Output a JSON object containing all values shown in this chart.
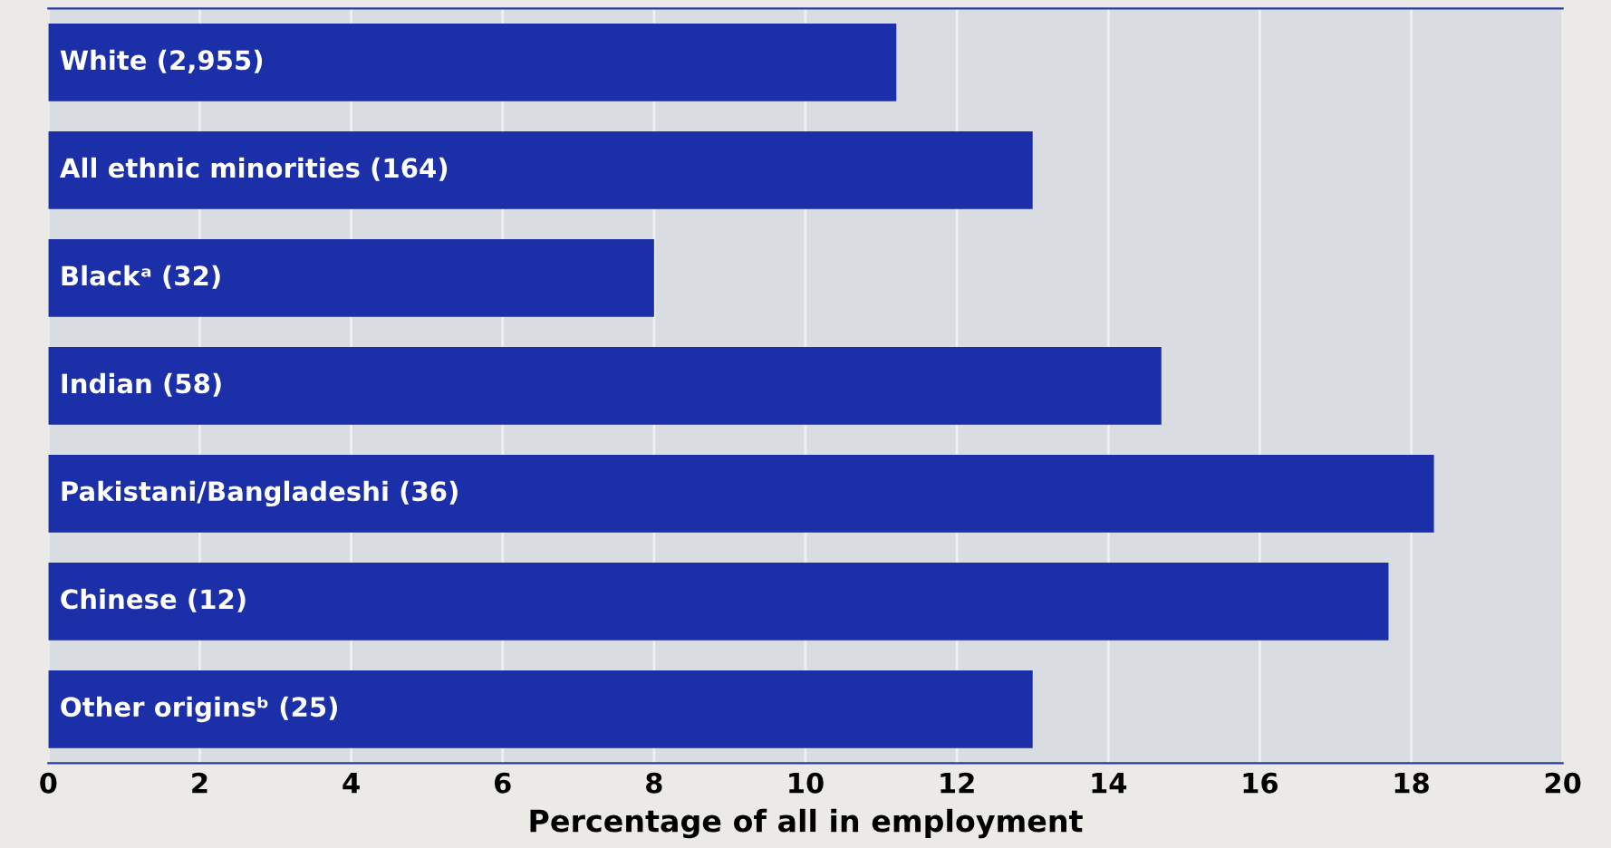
{
  "chart_data": {
    "type": "bar",
    "orientation": "horizontal",
    "xlabel": "Percentage of all in employment",
    "categories": [
      "White (2,955)",
      "All ethnic minorities (164)",
      "Blackᵃ (32)",
      "Indian (58)",
      "Pakistani/Bangladeshi (36)",
      "Chinese (12)",
      "Other originsᵇ (25)"
    ],
    "values": [
      11.2,
      13.0,
      8.0,
      14.7,
      18.3,
      17.7,
      13.0
    ],
    "color": "#1a2fa8",
    "xlim": [
      0,
      20
    ],
    "xticks": [
      0,
      2,
      4,
      6,
      8,
      10,
      12,
      14,
      16,
      18,
      20
    ],
    "grid": "x",
    "tick_labels": "x"
  }
}
